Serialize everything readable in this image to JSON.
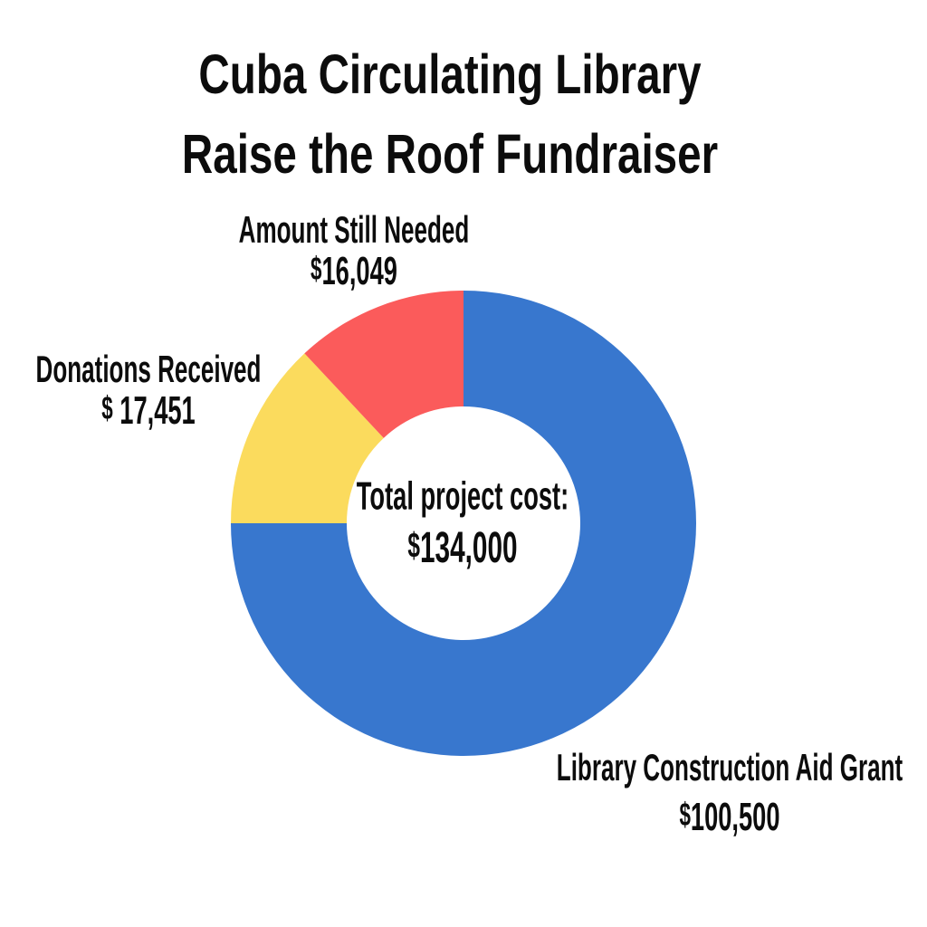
{
  "title": {
    "line1": "Cuba Circulating Library",
    "line2": "Raise the Roof Fundraiser"
  },
  "chart_data": {
    "type": "pie",
    "subtype": "donut",
    "title": "Cuba Circulating Library Raise the Roof Fundraiser",
    "direction": "clockwise",
    "start_angle_deg": 0,
    "inner_radius_ratio": 0.5,
    "total_value": 134000,
    "segments": [
      {
        "label": "Library Construction Aid Grant",
        "amount": "$100,500",
        "value": 100500,
        "color": "#3877CE"
      },
      {
        "label": "Donations Received",
        "amount": "$ 17,451",
        "value": 17451,
        "color": "#FBDB5D"
      },
      {
        "label": "Amount Still Needed",
        "amount": "$16,049",
        "value": 16049,
        "color": "#FB5B5B"
      }
    ],
    "center_label": {
      "line1": "Total project cost:",
      "line2": "$134,000"
    },
    "legend_position": "around-chart",
    "grid": false
  },
  "colors": {
    "background": "#FFFFFF",
    "text": "#0C0C0C",
    "grant_blue": "#3877CE",
    "donations_yellow": "#FBDB5D",
    "needed_red": "#FB5B5B"
  }
}
